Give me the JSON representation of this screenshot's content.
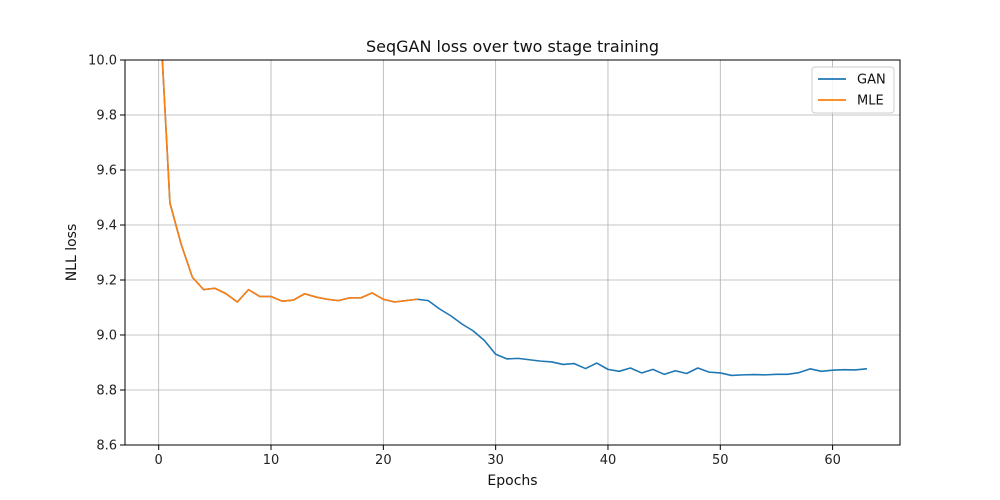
{
  "chart_data": {
    "type": "line",
    "title": "SeqGAN loss over two stage training",
    "xlabel": "Epochs",
    "ylabel": "NLL loss",
    "xlim": [
      -3,
      66
    ],
    "ylim": [
      8.6,
      10.0
    ],
    "xticks": [
      0,
      10,
      20,
      30,
      40,
      50,
      60
    ],
    "yticks": [
      8.6,
      8.8,
      9.0,
      9.2,
      9.4,
      9.6,
      9.8,
      10.0
    ],
    "xtick_labels": [
      "0",
      "10",
      "20",
      "30",
      "40",
      "50",
      "60"
    ],
    "ytick_labels": [
      "8.6",
      "8.8",
      "9.0",
      "9.2",
      "9.4",
      "9.6",
      "9.8",
      "10.0"
    ],
    "grid": true,
    "legend_position": "top-right",
    "series": [
      {
        "name": "GAN",
        "color": "#1f77b4",
        "x": [
          0,
          1,
          2,
          3,
          4,
          5,
          6,
          7,
          8,
          9,
          10,
          11,
          12,
          13,
          14,
          15,
          16,
          17,
          18,
          19,
          20,
          21,
          22,
          23,
          24,
          25,
          26,
          27,
          28,
          29,
          30,
          31,
          32,
          33,
          34,
          35,
          36,
          37,
          38,
          39,
          40,
          41,
          42,
          43,
          44,
          45,
          46,
          47,
          48,
          49,
          50,
          51,
          52,
          53,
          54,
          55,
          56,
          57,
          58,
          59,
          60,
          61,
          62,
          63
        ],
        "values": [
          10.25,
          9.48,
          9.33,
          9.21,
          9.165,
          9.17,
          9.15,
          9.12,
          9.165,
          9.14,
          9.14,
          9.123,
          9.127,
          9.15,
          9.138,
          9.13,
          9.125,
          9.135,
          9.135,
          9.153,
          9.13,
          9.12,
          9.125,
          9.13,
          9.125,
          9.095,
          9.07,
          9.04,
          9.015,
          8.98,
          8.93,
          8.913,
          8.915,
          8.91,
          8.905,
          8.902,
          8.893,
          8.896,
          8.878,
          8.898,
          8.875,
          8.868,
          8.88,
          8.862,
          8.875,
          8.857,
          8.87,
          8.86,
          8.88,
          8.865,
          8.862,
          8.853,
          8.855,
          8.856,
          8.855,
          8.857,
          8.857,
          8.863,
          8.877,
          8.868,
          8.872,
          8.874,
          8.873,
          8.877
        ]
      },
      {
        "name": "MLE",
        "color": "#ff7f0e",
        "x": [
          0,
          1,
          2,
          3,
          4,
          5,
          6,
          7,
          8,
          9,
          10,
          11,
          12,
          13,
          14,
          15,
          16,
          17,
          18,
          19,
          20,
          21,
          22,
          23
        ],
        "values": [
          10.25,
          9.48,
          9.33,
          9.21,
          9.165,
          9.17,
          9.15,
          9.12,
          9.165,
          9.14,
          9.14,
          9.123,
          9.127,
          9.15,
          9.138,
          9.13,
          9.125,
          9.135,
          9.135,
          9.153,
          9.13,
          9.12,
          9.125,
          9.13
        ]
      }
    ]
  }
}
